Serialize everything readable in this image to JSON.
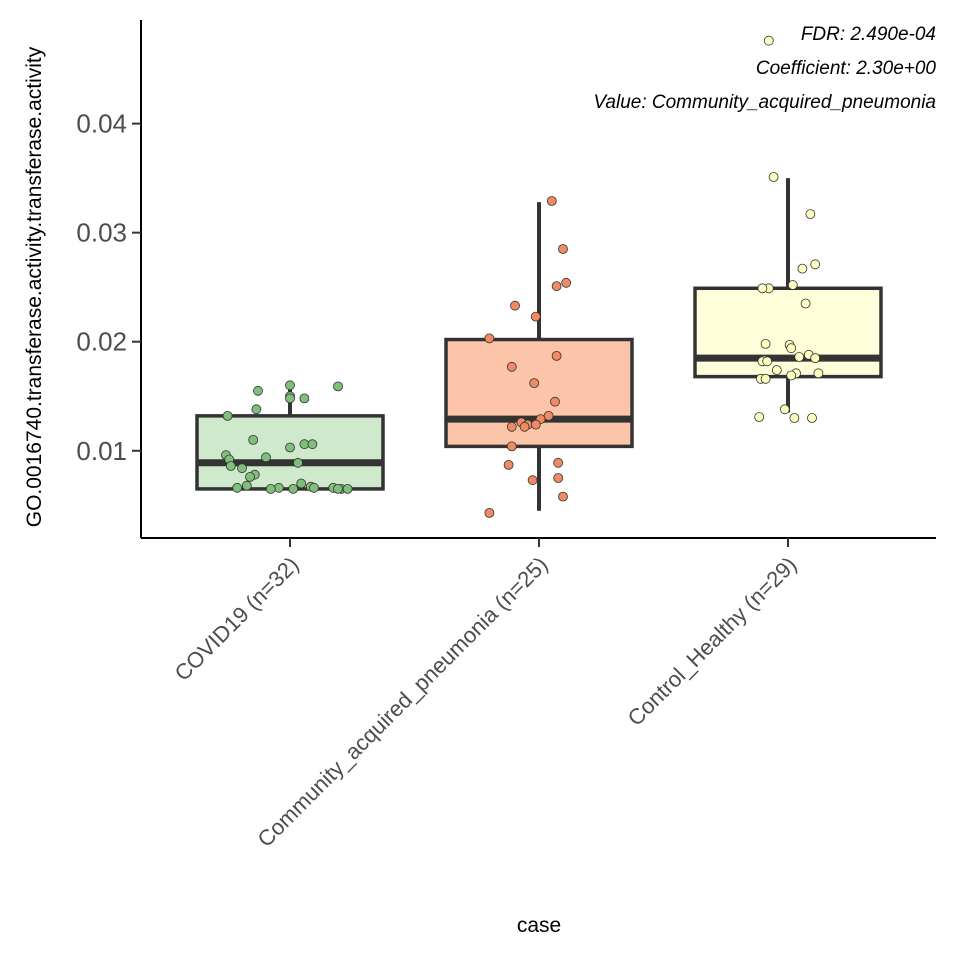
{
  "chart_data": {
    "type": "box",
    "xlabel": "case",
    "ylabel": "GO.0016740.transferase.activity.transferase.activity",
    "ylim": [
      0.002,
      0.0495
    ],
    "yticks": [
      {
        "value": 0.01,
        "label": "0.01"
      },
      {
        "value": 0.02,
        "label": "0.02"
      },
      {
        "value": 0.03,
        "label": "0.03"
      },
      {
        "value": 0.04,
        "label": "0.04"
      }
    ],
    "grid": false,
    "legend": "none",
    "annotations": [
      "FDR: 2.490e-04",
      "Coefficient: 2.30e+00",
      "Value: Community_acquired_pneumonia"
    ],
    "groups": [
      {
        "category": "COVID19 (n=32)",
        "fill": "#cfe9cc",
        "point_color": "#7fbf7b",
        "q1": 0.0065,
        "median": 0.0089,
        "q3": 0.0132,
        "whisker_low": 0.0065,
        "whisker_high": 0.016,
        "points": [
          0.016,
          0.0155,
          0.0159,
          0.015,
          0.0148,
          0.0148,
          0.0138,
          0.0132,
          0.011,
          0.0106,
          0.0106,
          0.0103,
          0.0096,
          0.0094,
          0.0092,
          0.0089,
          0.0086,
          0.0084,
          0.0078,
          0.0076,
          0.007,
          0.0068,
          0.0067,
          0.0066,
          0.0066,
          0.0066,
          0.0066,
          0.0065,
          0.0065,
          0.0065,
          0.0065,
          0.0065
        ],
        "jitter": [
          0.0,
          -0.2,
          0.3,
          0.0,
          0.09,
          0.0,
          -0.21,
          -0.39,
          -0.23,
          0.09,
          0.14,
          0.0,
          -0.4,
          -0.15,
          -0.38,
          0.05,
          -0.37,
          -0.3,
          -0.22,
          -0.25,
          0.07,
          -0.27,
          0.13,
          -0.33,
          -0.07,
          0.27,
          0.15,
          0.32,
          0.02,
          0.3,
          0.36,
          -0.12
        ]
      },
      {
        "category": "Community_acquired_pneumonia (n=25)",
        "fill": "#fcc5aa",
        "point_color": "#ef8a62",
        "q1": 0.0104,
        "median": 0.0129,
        "q3": 0.0202,
        "whisker_low": 0.0045,
        "whisker_high": 0.0328,
        "points": [
          0.0329,
          0.0285,
          0.0254,
          0.0251,
          0.0233,
          0.0223,
          0.0203,
          0.0187,
          0.0177,
          0.0162,
          0.0145,
          0.0132,
          0.0129,
          0.0126,
          0.0124,
          0.0124,
          0.0122,
          0.0122,
          0.0104,
          0.0089,
          0.0087,
          0.0075,
          0.0073,
          0.0058,
          0.0043
        ],
        "jitter": [
          0.08,
          0.15,
          0.17,
          0.11,
          -0.15,
          -0.02,
          -0.31,
          0.11,
          -0.17,
          -0.03,
          0.1,
          0.06,
          0.01,
          -0.11,
          -0.07,
          -0.02,
          -0.17,
          -0.09,
          -0.17,
          0.12,
          -0.19,
          0.12,
          -0.04,
          0.15,
          -0.31
        ]
      },
      {
        "category": "Control_Healthy (n=29)",
        "fill": "#ffffdc",
        "point_color": "#ffffbf",
        "q1": 0.0168,
        "median": 0.0185,
        "q3": 0.0249,
        "whisker_low": 0.0135,
        "whisker_high": 0.035,
        "points": [
          0.0476,
          0.0351,
          0.0317,
          0.0271,
          0.0267,
          0.0252,
          0.0249,
          0.0249,
          0.0235,
          0.0198,
          0.0197,
          0.0194,
          0.0188,
          0.0186,
          0.0185,
          0.0185,
          0.0183,
          0.0182,
          0.0182,
          0.0174,
          0.0171,
          0.0171,
          0.0169,
          0.0166,
          0.0166,
          0.0138,
          0.0131,
          0.013,
          0.013
        ],
        "jitter": [
          -0.12,
          -0.09,
          0.14,
          0.17,
          0.09,
          0.03,
          -0.12,
          -0.16,
          0.11,
          -0.14,
          0.01,
          0.02,
          0.13,
          0.07,
          0.17,
          0.17,
          -0.15,
          -0.16,
          -0.13,
          -0.07,
          0.05,
          0.19,
          0.02,
          -0.17,
          -0.14,
          -0.02,
          -0.18,
          0.15,
          0.04
        ]
      }
    ]
  }
}
